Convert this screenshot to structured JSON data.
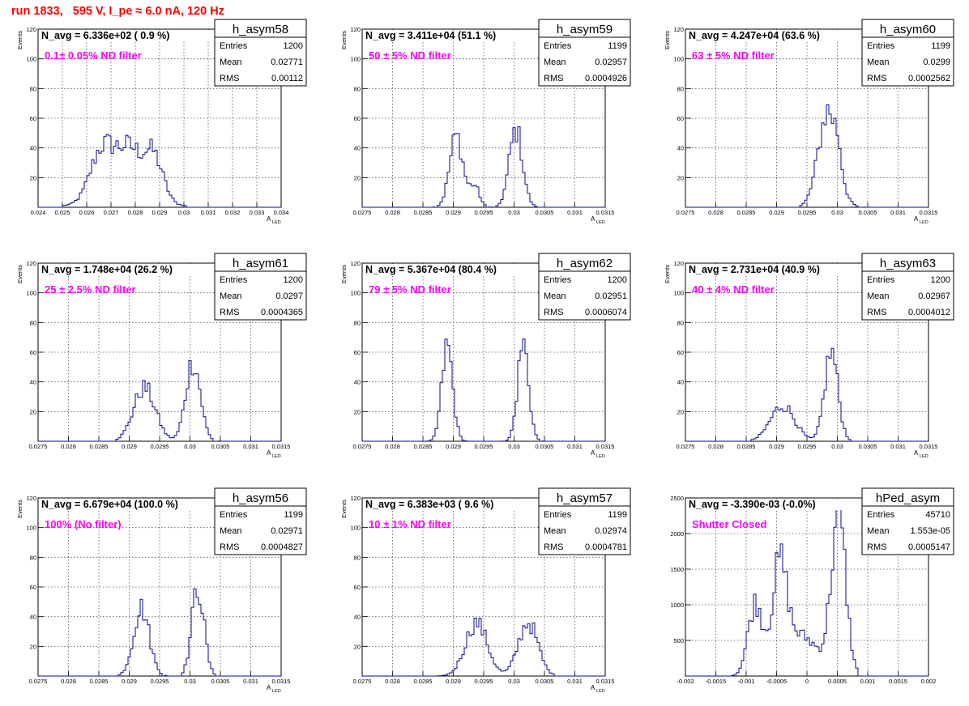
{
  "header": {
    "title": "run 1833,   595 V, I_pe ≈ 6.0 nA, 120 Hz"
  },
  "colors": {
    "line": "#0a0a8c",
    "label_magenta": "#ff00ff",
    "title_red": "#ff0000",
    "grid": "#555555"
  },
  "chart_data": [
    {
      "type": "histogram",
      "name": "h_asym58",
      "title": "N_avg = 6.336e+02 ( 0.9 %)",
      "label": "0.1± 0.05% ND filter",
      "ylabel": "Events",
      "xlabel": "A",
      "xlabel_sub": "LED",
      "xlim": [
        0.024,
        0.034
      ],
      "ylim": [
        0,
        120
      ],
      "xticks": [
        "0.024",
        "0.025",
        "0.026",
        "0.027",
        "0.028",
        "0.029",
        "0.03",
        "0.031",
        "0.032",
        "0.033",
        "0.034"
      ],
      "xtick_values": [
        0.024,
        0.025,
        0.026,
        0.027,
        0.028,
        0.029,
        0.03,
        0.031,
        0.032,
        0.033,
        0.034
      ],
      "yticks": [
        "20",
        "40",
        "60",
        "80",
        "100",
        "120"
      ],
      "ytick_values": [
        20,
        40,
        60,
        80,
        100,
        120
      ],
      "stats": [
        [
          "Entries",
          "1200"
        ],
        [
          "Mean",
          "0.02771"
        ],
        [
          "RMS",
          "0.00112"
        ]
      ],
      "peaks": [
        [
          0.02665,
          38,
          0.0005
        ],
        [
          0.02775,
          36,
          0.0005
        ],
        [
          0.02875,
          32,
          0.0004
        ]
      ],
      "base": 1,
      "range": [
        0.025,
        0.0303
      ]
    },
    {
      "type": "histogram",
      "name": "h_asym59",
      "title": "N_avg = 3.411e+04 (51.1 %)",
      "label": "50 ± 5% ND filter",
      "ylabel": "Events",
      "xlabel": "A",
      "xlabel_sub": "LED",
      "xlim": [
        0.0275,
        0.0315
      ],
      "ylim": [
        0,
        120
      ],
      "xticks": [
        "0.0275",
        "0.028",
        "0.0285",
        "0.029",
        "0.0295",
        "0.03",
        "0.0305",
        "0.031",
        "0.0315"
      ],
      "xtick_values": [
        0.0275,
        0.028,
        0.0285,
        0.029,
        0.0295,
        0.03,
        0.0305,
        0.031,
        0.0315
      ],
      "yticks": [
        "20",
        "40",
        "60",
        "80",
        "100",
        "120"
      ],
      "ytick_values": [
        20,
        40,
        60,
        80,
        100,
        120
      ],
      "stats": [
        [
          "Entries",
          "1199"
        ],
        [
          "Mean",
          "0.02957"
        ],
        [
          "RMS",
          "0.0004926"
        ]
      ],
      "peaks": [
        [
          0.02905,
          48,
          0.00011
        ],
        [
          0.02935,
          14,
          8e-05
        ],
        [
          0.03003,
          52,
          0.00011
        ]
      ],
      "base": 0,
      "range": [
        0.0286,
        0.0306
      ]
    },
    {
      "type": "histogram",
      "name": "h_asym60",
      "title": "N_avg = 4.247e+04 (63.6 %)",
      "label": "63 ± 5% ND filter",
      "ylabel": "Events",
      "xlabel": "A",
      "xlabel_sub": "LED",
      "xlim": [
        0.0275,
        0.0315
      ],
      "ylim": [
        0,
        120
      ],
      "xticks": [
        "0.0275",
        "0.028",
        "0.0285",
        "0.029",
        "0.0295",
        "0.03",
        "0.0305",
        "0.031",
        "0.0315"
      ],
      "xtick_values": [
        0.0275,
        0.028,
        0.0285,
        0.029,
        0.0295,
        0.03,
        0.0305,
        0.031,
        0.0315
      ],
      "yticks": [
        "20",
        "40",
        "60",
        "80",
        "100",
        "120"
      ],
      "ytick_values": [
        20,
        40,
        60,
        80,
        100,
        120
      ],
      "stats": [
        [
          "Entries",
          "1199"
        ],
        [
          "Mean",
          "0.0299"
        ],
        [
          "RMS",
          "0.0002562"
        ]
      ],
      "peaks": [
        [
          0.02985,
          65,
          0.00016
        ],
        [
          0.03002,
          10,
          5e-05
        ]
      ],
      "base": 0,
      "range": [
        0.02935,
        0.03055
      ]
    },
    {
      "type": "histogram",
      "name": "h_asym61",
      "title": "N_avg = 1.748e+04 (26.2 %)",
      "label": "25 ± 2.5% ND filter",
      "ylabel": "Events",
      "xlabel": "A",
      "xlabel_sub": "LED",
      "xlim": [
        0.0275,
        0.0315
      ],
      "ylim": [
        0,
        120
      ],
      "xticks": [
        "0.0275",
        "0.028",
        "0.0285",
        "0.029",
        "0.0295",
        "0.03",
        "0.0305",
        "0.031",
        "0.0315"
      ],
      "xtick_values": [
        0.0275,
        0.028,
        0.0285,
        0.029,
        0.0295,
        0.03,
        0.0305,
        0.031,
        0.0315
      ],
      "yticks": [
        "20",
        "40",
        "60",
        "80",
        "100",
        "120"
      ],
      "ytick_values": [
        20,
        40,
        60,
        80,
        100,
        120
      ],
      "stats": [
        [
          "Entries",
          "1200"
        ],
        [
          "Mean",
          "0.0297"
        ],
        [
          "RMS",
          "0.0004365"
        ]
      ],
      "peaks": [
        [
          0.02925,
          36,
          0.00018
        ],
        [
          0.03005,
          54,
          0.00012
        ]
      ],
      "base": 0,
      "range": [
        0.02875,
        0.03065
      ]
    },
    {
      "type": "histogram",
      "name": "h_asym62",
      "title": "N_avg = 5.367e+04 (80.4 %)",
      "label": "79 ± 5% ND filter",
      "ylabel": "Events",
      "xlabel": "A",
      "xlabel_sub": "LED",
      "xlim": [
        0.0275,
        0.0315
      ],
      "ylim": [
        0,
        120
      ],
      "xticks": [
        "0.0275",
        "0.028",
        "0.0285",
        "0.029",
        "0.0295",
        "0.03",
        "0.0305",
        "0.031",
        "0.0315"
      ],
      "xtick_values": [
        0.0275,
        0.028,
        0.0285,
        0.029,
        0.0295,
        0.03,
        0.0305,
        0.031,
        0.0315
      ],
      "yticks": [
        "20",
        "40",
        "60",
        "80",
        "100",
        "120"
      ],
      "ytick_values": [
        20,
        40,
        60,
        80,
        100,
        120
      ],
      "stats": [
        [
          "Entries",
          "1200"
        ],
        [
          "Mean",
          "0.02951"
        ],
        [
          "RMS",
          "0.0006074"
        ]
      ],
      "peaks": [
        [
          0.0289,
          64,
          9e-05
        ],
        [
          0.03015,
          66,
          9e-05
        ]
      ],
      "base": 0,
      "range": [
        0.02845,
        0.0306
      ]
    },
    {
      "type": "histogram",
      "name": "h_asym63",
      "title": "N_avg = 2.731e+04 (40.9 %)",
      "label": "40 ± 4% ND filter",
      "ylabel": "Events",
      "xlabel": "A",
      "xlabel_sub": "LED",
      "xlim": [
        0.0275,
        0.0315
      ],
      "ylim": [
        0,
        120
      ],
      "xticks": [
        "0.0275",
        "0.028",
        "0.0285",
        "0.029",
        "0.0295",
        "0.03",
        "0.0305",
        "0.031",
        "0.0315"
      ],
      "xtick_values": [
        0.0275,
        0.028,
        0.0285,
        0.029,
        0.0295,
        0.03,
        0.0305,
        0.031,
        0.0315
      ],
      "yticks": [
        "20",
        "40",
        "60",
        "80",
        "100",
        "120"
      ],
      "ytick_values": [
        20,
        40,
        60,
        80,
        100,
        120
      ],
      "stats": [
        [
          "Entries",
          "1200"
        ],
        [
          "Mean",
          "0.02967"
        ],
        [
          "RMS",
          "0.0004012"
        ]
      ],
      "peaks": [
        [
          0.0291,
          24,
          0.0002
        ],
        [
          0.0299,
          60,
          0.00011
        ]
      ],
      "base": 0,
      "range": [
        0.0286,
        0.0306
      ]
    },
    {
      "type": "histogram",
      "name": "h_asym56",
      "title": "N_avg = 6.679e+04 (100.0 %)",
      "label": "100% (No filter)",
      "ylabel": "Events",
      "xlabel": "A",
      "xlabel_sub": "LED",
      "xlim": [
        0.0275,
        0.0315
      ],
      "ylim": [
        0,
        120
      ],
      "xticks": [
        "0.0275",
        "0.028",
        "0.0285",
        "0.029",
        "0.0295",
        "0.03",
        "0.0305",
        "0.031",
        "0.0315"
      ],
      "xtick_values": [
        0.0275,
        0.028,
        0.0285,
        0.029,
        0.0295,
        0.03,
        0.0305,
        0.031,
        0.0315
      ],
      "yticks": [
        "20",
        "40",
        "60",
        "80",
        "100",
        "120"
      ],
      "ytick_values": [
        20,
        40,
        60,
        80,
        100,
        120
      ],
      "stats": [
        [
          "Entries",
          "1199"
        ],
        [
          "Mean",
          "0.02971"
        ],
        [
          "RMS",
          "0.0004827"
        ]
      ],
      "peaks": [
        [
          0.0292,
          46,
          0.00013
        ],
        [
          0.03013,
          60,
          0.0001
        ]
      ],
      "base": 0,
      "range": [
        0.02875,
        0.0306
      ]
    },
    {
      "type": "histogram",
      "name": "h_asym57",
      "title": "N_avg = 6.383e+03 ( 9.6 %)",
      "label": "10 ± 1% ND filter",
      "ylabel": "Events",
      "xlabel": "A",
      "xlabel_sub": "LED",
      "xlim": [
        0.0275,
        0.0315
      ],
      "ylim": [
        0,
        120
      ],
      "xticks": [
        "0.0275",
        "0.028",
        "0.0285",
        "0.029",
        "0.0295",
        "0.03",
        "0.0305",
        "0.031",
        "0.0315"
      ],
      "xtick_values": [
        0.0275,
        0.028,
        0.0285,
        0.029,
        0.0295,
        0.03,
        0.0305,
        0.031,
        0.0315
      ],
      "yticks": [
        "20",
        "40",
        "60",
        "80",
        "100",
        "120"
      ],
      "ytick_values": [
        20,
        40,
        60,
        80,
        100,
        120
      ],
      "stats": [
        [
          "Entries",
          "1199"
        ],
        [
          "Mean",
          "0.02974"
        ],
        [
          "RMS",
          "0.0004781"
        ]
      ],
      "peaks": [
        [
          0.02938,
          36,
          0.00018
        ],
        [
          0.03023,
          36,
          0.00016
        ]
      ],
      "base": 0,
      "range": [
        0.0284,
        0.0307
      ]
    },
    {
      "type": "histogram",
      "name": "hPed_asym",
      "title": "N_avg = -3.390e-03 (-0.0%)",
      "label": "Shutter Closed",
      "ylabel": "",
      "xlabel": "",
      "xlabel_sub": "",
      "xlim": [
        -0.002,
        0.002
      ],
      "ylim": [
        0,
        2500
      ],
      "xticks": [
        "-0.002",
        "-0.0015",
        "-0.001",
        "-0.0005",
        "0",
        "0.0005",
        "0.001",
        "0.0015",
        "0.002"
      ],
      "xtick_values": [
        -0.002,
        -0.0015,
        -0.001,
        -0.0005,
        0,
        0.0005,
        0.001,
        0.0015,
        0.002
      ],
      "yticks": [
        "500",
        "1000",
        "1500",
        "2000",
        "2500"
      ],
      "ytick_values": [
        500,
        1000,
        1500,
        2000,
        2500
      ],
      "stats": [
        [
          "Entries",
          "45710"
        ],
        [
          "Mean",
          "1.553e-05"
        ],
        [
          "RMS",
          "0.0005147"
        ]
      ],
      "peaks": [
        [
          -0.00085,
          1000,
          0.00012
        ],
        [
          -0.00045,
          1350,
          0.00012
        ],
        [
          -0.0001,
          560,
          0.0003
        ],
        [
          0.00052,
          2200,
          0.00012
        ]
      ],
      "base": 0,
      "range": [
        -0.00125,
        0.00085
      ]
    }
  ]
}
